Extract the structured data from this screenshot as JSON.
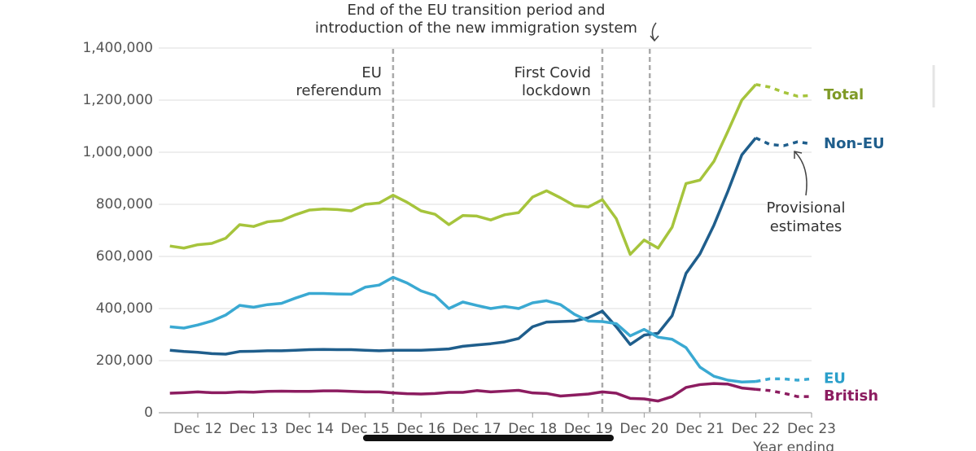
{
  "chart_data": {
    "type": "line",
    "x_label": "Year ending",
    "x": [
      2011.5,
      2011.75,
      2012,
      2012.25,
      2012.5,
      2012.75,
      2013,
      2013.25,
      2013.5,
      2013.75,
      2014,
      2014.25,
      2014.5,
      2014.75,
      2015,
      2015.25,
      2015.5,
      2015.75,
      2016,
      2016.25,
      2016.5,
      2016.75,
      2017,
      2017.25,
      2017.5,
      2017.75,
      2018,
      2018.25,
      2018.5,
      2018.75,
      2019,
      2019.25,
      2019.5,
      2019.75,
      2020,
      2020.25,
      2020.5,
      2020.75,
      2021,
      2021.25,
      2021.5,
      2021.75,
      2022
    ],
    "provisional_x": [
      2022,
      2022.25,
      2022.5,
      2022.75,
      2023
    ],
    "series": [
      {
        "name": "Total",
        "color": "#a6c43c",
        "label_color": "#7f9a26",
        "values": [
          640000,
          632000,
          645000,
          650000,
          670000,
          722000,
          715000,
          733000,
          738000,
          760000,
          778000,
          782000,
          780000,
          775000,
          800000,
          805000,
          835000,
          808000,
          775000,
          762000,
          722000,
          757000,
          755000,
          740000,
          760000,
          768000,
          828000,
          852000,
          825000,
          795000,
          790000,
          818000,
          745000,
          608000,
          663000,
          632000,
          712000,
          880000,
          893000,
          965000,
          1080000,
          1200000,
          1260000
        ],
        "provisional_values": [
          1260000,
          1250000,
          1230000,
          1215000,
          1218000
        ]
      },
      {
        "name": "Non-EU",
        "color": "#1f5e8c",
        "label_color": "#1f5e8c",
        "values": [
          240000,
          235000,
          232000,
          227000,
          225000,
          235000,
          236000,
          238000,
          238000,
          240000,
          242000,
          243000,
          242000,
          242000,
          240000,
          238000,
          240000,
          240000,
          240000,
          242000,
          245000,
          255000,
          260000,
          265000,
          272000,
          285000,
          330000,
          348000,
          350000,
          352000,
          365000,
          390000,
          330000,
          262000,
          298000,
          305000,
          372000,
          535000,
          610000,
          720000,
          850000,
          990000,
          1055000
        ],
        "provisional_values": [
          1055000,
          1030000,
          1025000,
          1040000,
          1032000
        ]
      },
      {
        "name": "EU",
        "color": "#3aa9d2",
        "label_color": "#2a9fca",
        "values": [
          330000,
          325000,
          337000,
          352000,
          375000,
          412000,
          405000,
          415000,
          420000,
          440000,
          458000,
          458000,
          456000,
          455000,
          482000,
          490000,
          520000,
          498000,
          468000,
          450000,
          400000,
          425000,
          412000,
          400000,
          408000,
          400000,
          422000,
          430000,
          415000,
          378000,
          352000,
          350000,
          342000,
          295000,
          320000,
          290000,
          282000,
          250000,
          175000,
          140000,
          125000,
          118000,
          120000
        ],
        "provisional_values": [
          120000,
          130000,
          130000,
          125000,
          130000
        ]
      },
      {
        "name": "British",
        "color": "#8c1c60",
        "label_color": "#8c1c60",
        "values": [
          75000,
          77000,
          80000,
          77000,
          77000,
          80000,
          79000,
          82000,
          83000,
          82000,
          82000,
          84000,
          84000,
          82000,
          80000,
          80000,
          76000,
          73000,
          72000,
          74000,
          78000,
          78000,
          85000,
          80000,
          83000,
          86000,
          76000,
          74000,
          64000,
          68000,
          72000,
          80000,
          75000,
          55000,
          53000,
          45000,
          62000,
          97000,
          108000,
          112000,
          110000,
          95000,
          90000
        ],
        "provisional_values": [
          90000,
          85000,
          75000,
          62000,
          62000
        ]
      }
    ],
    "xlim": [
      2011.3,
      2023
    ],
    "xticks": [
      {
        "value": 2012,
        "label": "Dec 12"
      },
      {
        "value": 2013,
        "label": "Dec 13"
      },
      {
        "value": 2014,
        "label": "Dec 14"
      },
      {
        "value": 2015,
        "label": "Dec 15"
      },
      {
        "value": 2016,
        "label": "Dec 16"
      },
      {
        "value": 2017,
        "label": "Dec 17"
      },
      {
        "value": 2018,
        "label": "Dec 18"
      },
      {
        "value": 2019,
        "label": "Dec 19"
      },
      {
        "value": 2020,
        "label": "Dec 20"
      },
      {
        "value": 2021,
        "label": "Dec 21"
      },
      {
        "value": 2022,
        "label": "Dec 22"
      },
      {
        "value": 2023,
        "label": "Dec 23"
      }
    ],
    "ylim": [
      0,
      1400000
    ],
    "yticks": [
      0,
      {
        "value": 200000,
        "label": "200,000"
      },
      {
        "value": 400000,
        "label": "400,000"
      },
      {
        "value": 600000,
        "label": "600,000"
      },
      {
        "value": 800000,
        "label": "800,000"
      },
      {
        "value": 1000000,
        "label": "1,000,000"
      },
      {
        "value": 1200000,
        "label": "1,200,000"
      },
      {
        "value": 1400000,
        "label": "1,400,000"
      }
    ],
    "grid": true,
    "events": [
      {
        "x": 2015.5,
        "label": [
          "EU",
          "referendum"
        ]
      },
      {
        "x": 2019.25,
        "label": [
          "First Covid",
          "lockdown"
        ]
      },
      {
        "x": 2020.1,
        "label": [
          "End of the EU transition period and",
          "introduction of the new immigration system"
        ]
      }
    ],
    "note": [
      "Provisional",
      "estimates"
    ]
  }
}
